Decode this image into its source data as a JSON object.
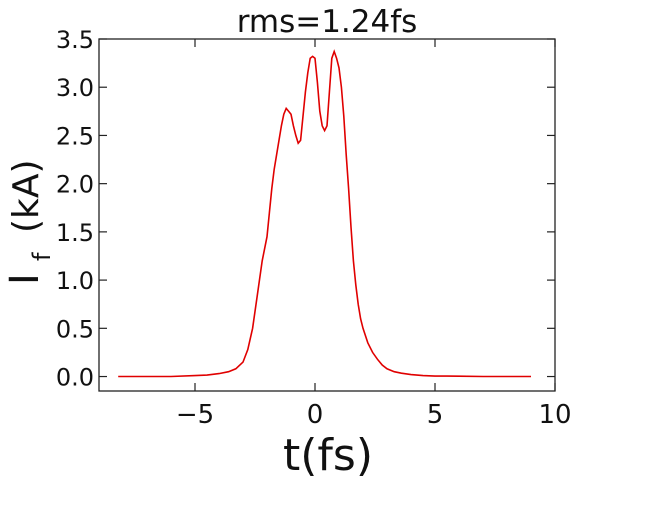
{
  "chart_data": {
    "type": "line",
    "title": "rms=1.24fs",
    "xlabel": "t(fs)",
    "ylabel_main": "I",
    "ylabel_sub": "f",
    "ylabel_unit": "(kA)",
    "xlim": [
      -9,
      10
    ],
    "ylim": [
      -0.15,
      3.5
    ],
    "xticks": [
      -5,
      0,
      5,
      10
    ],
    "xtick_labels": [
      "−5",
      "0",
      "5",
      "10"
    ],
    "yticks": [
      0.0,
      0.5,
      1.0,
      1.5,
      2.0,
      2.5,
      3.0,
      3.5
    ],
    "ytick_labels": [
      "0.0",
      "0.5",
      "1.0",
      "1.5",
      "2.0",
      "2.5",
      "3.0",
      "3.5"
    ],
    "grid": false,
    "line_color": "#e00000",
    "series": [
      {
        "x": [
          -8.2,
          -7.0,
          -6.0,
          -5.0,
          -4.5,
          -4.0,
          -3.6,
          -3.3,
          -3.0,
          -2.8,
          -2.6,
          -2.4,
          -2.2,
          -2.0,
          -1.9,
          -1.8,
          -1.7,
          -1.6,
          -1.5,
          -1.4,
          -1.3,
          -1.2,
          -1.1,
          -1.0,
          -0.9,
          -0.8,
          -0.7,
          -0.6,
          -0.5,
          -0.4,
          -0.3,
          -0.2,
          -0.1,
          0.0,
          0.1,
          0.2,
          0.3,
          0.4,
          0.5,
          0.6,
          0.7,
          0.8,
          0.9,
          1.0,
          1.1,
          1.2,
          1.3,
          1.4,
          1.5,
          1.6,
          1.7,
          1.8,
          1.9,
          2.0,
          2.2,
          2.4,
          2.6,
          2.8,
          3.0,
          3.3,
          3.6,
          4.0,
          4.5,
          5.0,
          5.5,
          6.0,
          7.0,
          8.0,
          9.0
        ],
        "values": [
          0.0,
          0.0,
          0.0,
          0.01,
          0.015,
          0.03,
          0.05,
          0.08,
          0.15,
          0.28,
          0.5,
          0.85,
          1.2,
          1.45,
          1.7,
          1.95,
          2.15,
          2.3,
          2.45,
          2.6,
          2.72,
          2.78,
          2.75,
          2.72,
          2.6,
          2.5,
          2.42,
          2.45,
          2.7,
          2.95,
          3.15,
          3.3,
          3.32,
          3.3,
          3.05,
          2.75,
          2.6,
          2.55,
          2.6,
          2.95,
          3.3,
          3.37,
          3.3,
          3.2,
          3.0,
          2.7,
          2.3,
          1.95,
          1.55,
          1.2,
          0.95,
          0.75,
          0.6,
          0.5,
          0.35,
          0.25,
          0.18,
          0.12,
          0.08,
          0.05,
          0.035,
          0.02,
          0.01,
          0.005,
          0.005,
          0.003,
          0.0,
          0.0,
          0.0
        ]
      }
    ]
  }
}
